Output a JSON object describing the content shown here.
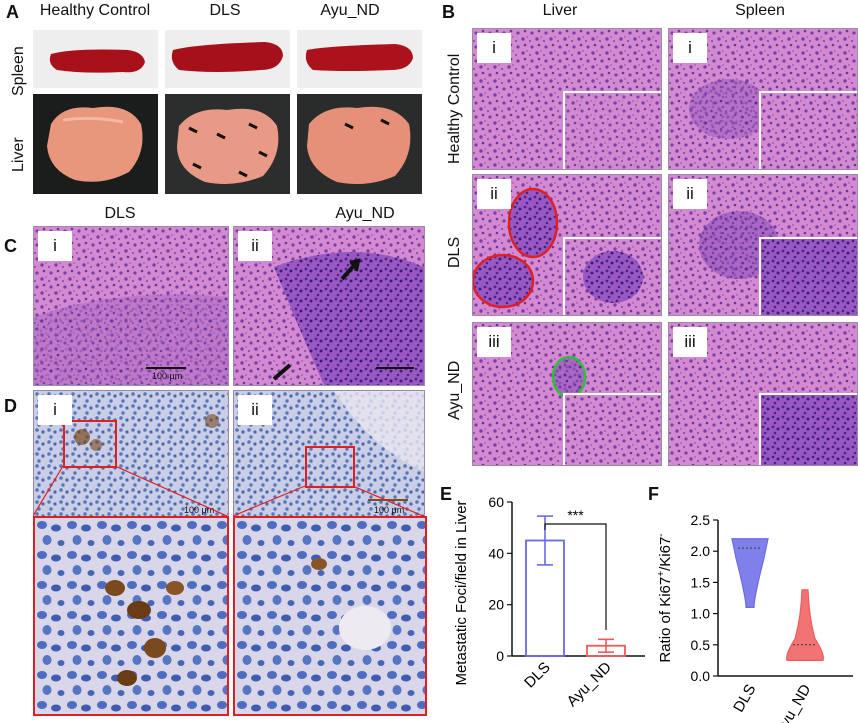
{
  "panels": {
    "A": {
      "letter": "A",
      "col_headers": [
        "Healthy Control",
        "DLS",
        "Ayu_ND"
      ],
      "row_labels": [
        "Spleen",
        "Liver"
      ],
      "bottom_labels": [
        "DLS",
        "Ayu_ND"
      ]
    },
    "B": {
      "letter": "B",
      "col_headers": [
        "Liver",
        "Spleen"
      ],
      "row_labels": [
        "Healthy Control",
        "DLS",
        "Ayu_ND"
      ],
      "row_numerals": [
        "i",
        "ii",
        "iii"
      ]
    },
    "C": {
      "letter": "C",
      "numerals": [
        "i",
        "ii"
      ],
      "scale_text": "100 μm"
    },
    "D": {
      "letter": "D",
      "numerals": [
        "i",
        "ii"
      ],
      "scale_text": "100 μm"
    },
    "E": {
      "letter": "E"
    },
    "F": {
      "letter": "F"
    }
  },
  "colors": {
    "he_pink": "#c56fc4",
    "he_purple": "#7a3fa8",
    "ihc_blue": "#6a86bf",
    "ihc_brown": "#7a4a1e",
    "organ_red": "#b0101a",
    "liver_tan": "#e8a085",
    "accent_red": "#e02020",
    "green_circle": "#2fbf3a",
    "series_blue": "#6a6ae8",
    "series_red": "#ef5a5a"
  },
  "chart_data": [
    {
      "type": "bar",
      "panel": "E",
      "categories": [
        "DLS",
        "Ayu_ND"
      ],
      "values": [
        45,
        4
      ],
      "errors": [
        9.5,
        2.5
      ],
      "ylabel": "Metastatic Foci/field in Liver",
      "ylim": [
        0,
        60
      ],
      "yticks": [
        0,
        20,
        40,
        60
      ],
      "significance": "***",
      "bar_colors": [
        "#6a6ae8",
        "#ef5a5a"
      ]
    },
    {
      "type": "violin",
      "panel": "F",
      "categories": [
        "DLS",
        "Ayu_ND"
      ],
      "ylabel_parts": [
        "Ratio of Ki67",
        "+",
        "/Ki67",
        "-"
      ],
      "ylim": [
        0,
        2.5
      ],
      "yticks": [
        "0.0",
        "0.5",
        "1.0",
        "1.5",
        "2.0",
        "2.5"
      ],
      "series": [
        {
          "name": "DLS",
          "min": 1.1,
          "max": 2.2,
          "median": 2.05,
          "color": "#6a6ae8"
        },
        {
          "name": "Ayu_ND",
          "min": 0.25,
          "max": 1.38,
          "median": 0.5,
          "color": "#ef5a5a"
        }
      ]
    }
  ]
}
